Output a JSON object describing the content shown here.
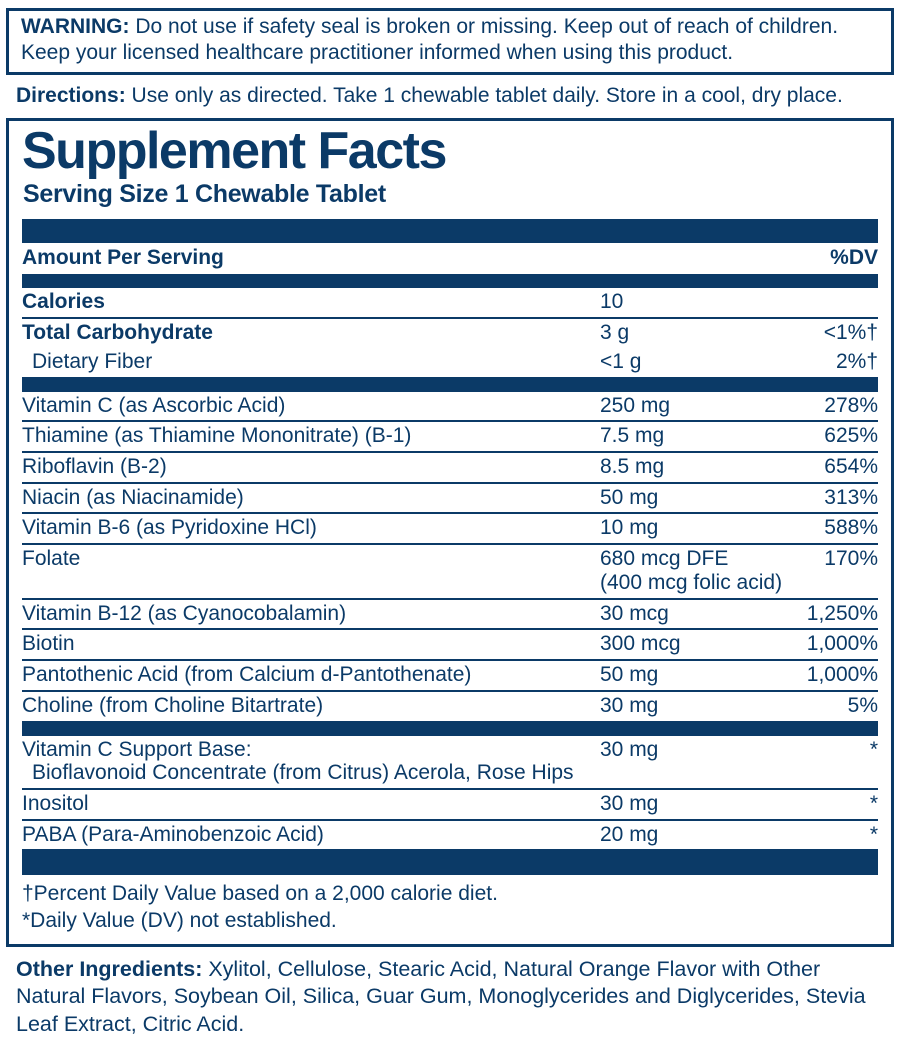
{
  "colors": {
    "navy": "#0b3a67",
    "background": "#ffffff"
  },
  "warning": {
    "label": "WARNING:",
    "text": "Do not use if safety seal is broken or missing. Keep out of reach of children. Keep your licensed healthcare practitioner informed when using this product."
  },
  "directions": {
    "label": "Directions:",
    "text": "Use only as directed. Take 1 chewable tablet daily. Store in a cool, dry place."
  },
  "facts": {
    "title": "Supplement Facts",
    "serving_size": "Serving Size 1 Chewable Tablet",
    "header": {
      "amount_per_serving": "Amount Per Serving",
      "dv": "%DV"
    },
    "sections": [
      {
        "rows": [
          {
            "label": "Calories",
            "amount": "10",
            "dv": ""
          },
          {
            "label": "Total Carbohydrate",
            "amount": "3 g",
            "dv": "<1%†"
          },
          {
            "label": "Dietary Fiber",
            "amount": "<1 g",
            "dv": "2%†"
          }
        ]
      },
      {
        "rows": [
          {
            "label": "Vitamin C (as Ascorbic Acid)",
            "amount": "250 mg",
            "dv": "278%"
          },
          {
            "label": "Thiamine (as Thiamine Mononitrate) (B-1)",
            "amount": "7.5 mg",
            "dv": "625%"
          },
          {
            "label": "Riboflavin (B-2)",
            "amount": "8.5 mg",
            "dv": "654%"
          },
          {
            "label": "Niacin (as Niacinamide)",
            "amount": "50 mg",
            "dv": "313%"
          },
          {
            "label": "Vitamin B-6 (as Pyridoxine HCl)",
            "amount": "10 mg",
            "dv": "588%"
          },
          {
            "label": "Folate",
            "amount": "680 mcg DFE",
            "amount_line2": "(400 mcg folic acid)",
            "dv": "170%"
          },
          {
            "label": "Vitamin B-12 (as Cyanocobalamin)",
            "amount": "30 mcg",
            "dv": "1,250%"
          },
          {
            "label": "Biotin",
            "amount": "300 mcg",
            "dv": "1,000%"
          },
          {
            "label": "Pantothenic Acid (from Calcium d-Pantothenate)",
            "amount": "50 mg",
            "dv": "1,000%"
          },
          {
            "label": "Choline (from Choline Bitartrate)",
            "amount": "30 mg",
            "dv": "5%"
          }
        ]
      },
      {
        "rows": [
          {
            "label": "Vitamin C Support Base:",
            "label_line2": "Bioflavonoid Concentrate (from Citrus) Acerola, Rose Hips",
            "amount": "30 mg",
            "dv": "*"
          },
          {
            "label": "Inositol",
            "amount": "30 mg",
            "dv": "*"
          },
          {
            "label": "PABA (Para-Aminobenzoic Acid)",
            "amount": "20 mg",
            "dv": "*"
          }
        ]
      }
    ],
    "footnotes": {
      "line1": "†Percent Daily Value based on a 2,000 calorie diet.",
      "line2": "*Daily Value (DV) not established."
    }
  },
  "other_ingredients": {
    "label": "Other Ingredients:",
    "text": "Xylitol, Cellulose, Stearic Acid, Natural Orange Flavor with Other Natural Flavors, Soybean Oil, Silica, Guar Gum, Monoglycerides and Diglycerides, Stevia Leaf Extract, Citric Acid."
  }
}
